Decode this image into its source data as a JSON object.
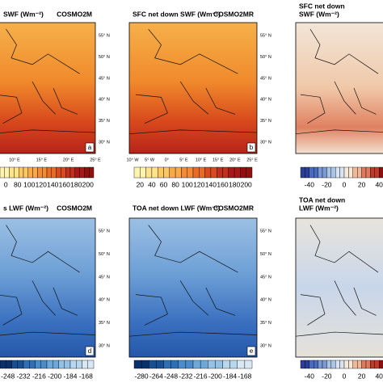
{
  "lat_labels": [
    "55° N",
    "50° N",
    "45° N",
    "40° N",
    "35° N",
    "30° N"
  ],
  "lon_labels": [
    "10° W",
    "5° W",
    "0°",
    "5° E",
    "10° E",
    "15° E",
    "20° E",
    "25° E"
  ],
  "panels": [
    {
      "title": [
        "SWF (Wm⁻²)"
      ],
      "model": "COSMO2M",
      "letter": "a",
      "colorbar": [
        "0",
        "80",
        "100",
        "120",
        "140",
        "160",
        "180",
        "200"
      ]
    },
    {
      "title": [
        "SFC net down SWF (Wm⁻²)"
      ],
      "model": "COSMO2MR",
      "letter": "b",
      "colorbar": [
        "20",
        "40",
        "60",
        "80",
        "100",
        "120",
        "140",
        "160",
        "180",
        "200"
      ]
    },
    {
      "title": [
        "SFC net down",
        "SWF (Wm⁻²)"
      ],
      "colorbar": [
        "-40",
        "-20",
        "0",
        "20",
        "40"
      ]
    },
    {
      "title": [
        "s LWF (Wm⁻²)"
      ],
      "model": "COSMO2M",
      "letter": "d",
      "colorbar": [
        "-248",
        "-232",
        "-216",
        "-200",
        "-184",
        "-168"
      ]
    },
    {
      "title": [
        "TOA net down LWF (Wm⁻²)"
      ],
      "model": "COSMO2MR",
      "letter": "e",
      "colorbar": [
        "-280",
        "-264",
        "-248",
        "-232",
        "-216",
        "-200",
        "-184",
        "-168"
      ]
    },
    {
      "title": [
        "TOA net down",
        "LWF (Wm⁻²)"
      ],
      "colorbar": [
        "-40",
        "-20",
        "0",
        "20",
        "40"
      ]
    }
  ]
}
